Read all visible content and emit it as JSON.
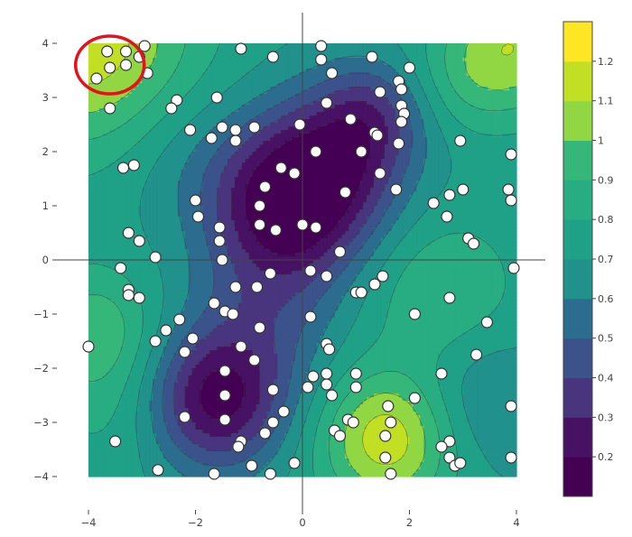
{
  "chart_data": {
    "type": "contour",
    "title": "",
    "xlabel": "",
    "ylabel": "",
    "xlim": [
      -4,
      4
    ],
    "ylim": [
      -4,
      4
    ],
    "x_ticks": [
      "−4",
      "−2",
      "0",
      "2",
      "4"
    ],
    "y_ticks": [
      "4",
      "3",
      "2",
      "1",
      "0",
      "−1",
      "−2",
      "−3",
      "−4"
    ],
    "colorbar": {
      "levels": [
        0.2,
        0.3,
        0.4,
        0.5,
        0.6,
        0.7,
        0.8,
        0.9,
        1.0,
        1.1,
        1.2
      ],
      "labels": [
        "0.2",
        "0.3",
        "0.4",
        "0.5",
        "0.6",
        "0.7",
        "0.8",
        "0.9",
        "1",
        "1.1",
        "1.2"
      ],
      "colorscale": [
        "#440154",
        "#471164",
        "#48357e",
        "#3b528b",
        "#2c6c8e",
        "#21918c",
        "#1fa187",
        "#27ad81",
        "#35b779",
        "#90d743",
        "#c2df23",
        "#fde725"
      ]
    },
    "zeroline": true,
    "highlight_circle": {
      "center": [
        -3.6,
        3.6
      ],
      "color": "#e8101c"
    },
    "points": [
      [
        -3.65,
        3.85
      ],
      [
        -3.3,
        3.85
      ],
      [
        -3.6,
        3.55
      ],
      [
        -3.3,
        3.6
      ],
      [
        -3.85,
        3.35
      ],
      [
        -3.05,
        3.75
      ],
      [
        -2.95,
        3.95
      ],
      [
        -2.9,
        3.45
      ],
      [
        -3.6,
        2.8
      ],
      [
        -1.15,
        3.9
      ],
      [
        -0.55,
        3.75
      ],
      [
        0.35,
        3.95
      ],
      [
        0.35,
        3.7
      ],
      [
        0.55,
        3.45
      ],
      [
        1.3,
        3.75
      ],
      [
        2.0,
        3.55
      ],
      [
        1.8,
        3.3
      ],
      [
        1.45,
        3.1
      ],
      [
        1.85,
        3.15
      ],
      [
        -2.35,
        2.95
      ],
      [
        -2.45,
        2.8
      ],
      [
        -1.6,
        3.0
      ],
      [
        0.45,
        2.9
      ],
      [
        1.85,
        2.85
      ],
      [
        1.9,
        2.7
      ],
      [
        0.9,
        2.6
      ],
      [
        1.85,
        2.55
      ],
      [
        -2.1,
        2.4
      ],
      [
        -1.5,
        2.45
      ],
      [
        -1.25,
        2.4
      ],
      [
        -1.7,
        2.25
      ],
      [
        -1.25,
        2.2
      ],
      [
        -0.9,
        2.45
      ],
      [
        -0.05,
        2.5
      ],
      [
        1.35,
        2.35
      ],
      [
        1.4,
        2.3
      ],
      [
        1.8,
        2.15
      ],
      [
        2.95,
        2.2
      ],
      [
        0.25,
        2.0
      ],
      [
        1.1,
        2.0
      ],
      [
        -3.35,
        1.7
      ],
      [
        -3.15,
        1.75
      ],
      [
        -0.4,
        1.7
      ],
      [
        -0.15,
        1.6
      ],
      [
        1.45,
        1.6
      ],
      [
        3.9,
        1.95
      ],
      [
        -0.7,
        1.35
      ],
      [
        0.8,
        1.25
      ],
      [
        1.75,
        1.3
      ],
      [
        2.75,
        1.2
      ],
      [
        3.0,
        1.3
      ],
      [
        3.85,
        1.3
      ],
      [
        -2.0,
        1.1
      ],
      [
        -0.8,
        1.0
      ],
      [
        2.45,
        1.05
      ],
      [
        3.9,
        1.1
      ],
      [
        -1.95,
        0.8
      ],
      [
        2.7,
        0.8
      ],
      [
        -0.8,
        0.65
      ],
      [
        -1.55,
        0.6
      ],
      [
        -0.5,
        0.55
      ],
      [
        0.0,
        0.65
      ],
      [
        0.25,
        0.6
      ],
      [
        -3.25,
        0.5
      ],
      [
        3.1,
        0.4
      ],
      [
        3.2,
        0.3
      ],
      [
        -1.55,
        0.35
      ],
      [
        -3.05,
        0.35
      ],
      [
        0.7,
        0.15
      ],
      [
        -2.75,
        0.05
      ],
      [
        -1.5,
        0.0
      ],
      [
        0.45,
        -0.3
      ],
      [
        -3.4,
        -0.15
      ],
      [
        -0.6,
        -0.25
      ],
      [
        0.15,
        -0.2
      ],
      [
        1.5,
        -0.3
      ],
      [
        1.35,
        -0.45
      ],
      [
        3.95,
        -0.15
      ],
      [
        -3.25,
        -0.55
      ],
      [
        -3.25,
        -0.65
      ],
      [
        -1.25,
        -0.5
      ],
      [
        -0.85,
        -0.5
      ],
      [
        1.0,
        -0.6
      ],
      [
        1.1,
        -0.6
      ],
      [
        2.75,
        -0.7
      ],
      [
        -3.05,
        -0.7
      ],
      [
        -1.65,
        -0.8
      ],
      [
        -1.45,
        -0.95
      ],
      [
        -1.3,
        -1.0
      ],
      [
        0.15,
        -1.05
      ],
      [
        2.1,
        -1.0
      ],
      [
        3.45,
        -1.15
      ],
      [
        -2.3,
        -1.1
      ],
      [
        -2.55,
        -1.3
      ],
      [
        -0.8,
        -1.25
      ],
      [
        -2.05,
        -1.45
      ],
      [
        -2.75,
        -1.5
      ],
      [
        -1.15,
        -1.6
      ],
      [
        0.45,
        -1.55
      ],
      [
        0.5,
        -1.65
      ],
      [
        -4.0,
        -1.6
      ],
      [
        3.25,
        -1.75
      ],
      [
        -2.2,
        -1.7
      ],
      [
        -0.9,
        -1.85
      ],
      [
        -1.45,
        -2.05
      ],
      [
        0.45,
        -2.1
      ],
      [
        1.0,
        -2.1
      ],
      [
        2.6,
        -2.1
      ],
      [
        0.2,
        -2.15
      ],
      [
        0.1,
        -2.35
      ],
      [
        -0.55,
        -2.4
      ],
      [
        0.45,
        -2.3
      ],
      [
        1.0,
        -2.35
      ],
      [
        -1.45,
        -2.5
      ],
      [
        0.55,
        -2.5
      ],
      [
        2.1,
        -2.55
      ],
      [
        3.9,
        -2.7
      ],
      [
        1.6,
        -2.7
      ],
      [
        -0.35,
        -2.8
      ],
      [
        -2.2,
        -2.9
      ],
      [
        -1.45,
        -2.95
      ],
      [
        -0.55,
        -3.0
      ],
      [
        0.85,
        -2.95
      ],
      [
        1.65,
        -3.0
      ],
      [
        0.95,
        -3.0
      ],
      [
        -0.7,
        -3.2
      ],
      [
        0.6,
        -3.15
      ],
      [
        0.7,
        -3.25
      ],
      [
        1.55,
        -3.25
      ],
      [
        -1.15,
        -3.35
      ],
      [
        -3.5,
        -3.35
      ],
      [
        2.75,
        -3.35
      ],
      [
        -1.2,
        -3.45
      ],
      [
        2.6,
        -3.45
      ],
      [
        3.9,
        -3.65
      ],
      [
        2.75,
        -3.65
      ],
      [
        2.85,
        -3.8
      ],
      [
        2.95,
        -3.75
      ],
      [
        1.55,
        -3.65
      ],
      [
        -0.15,
        -3.75
      ],
      [
        -0.95,
        -3.8
      ],
      [
        -2.7,
        -3.88
      ],
      [
        -1.65,
        -3.95
      ],
      [
        -0.6,
        -3.95
      ],
      [
        1.65,
        -3.95
      ]
    ]
  }
}
